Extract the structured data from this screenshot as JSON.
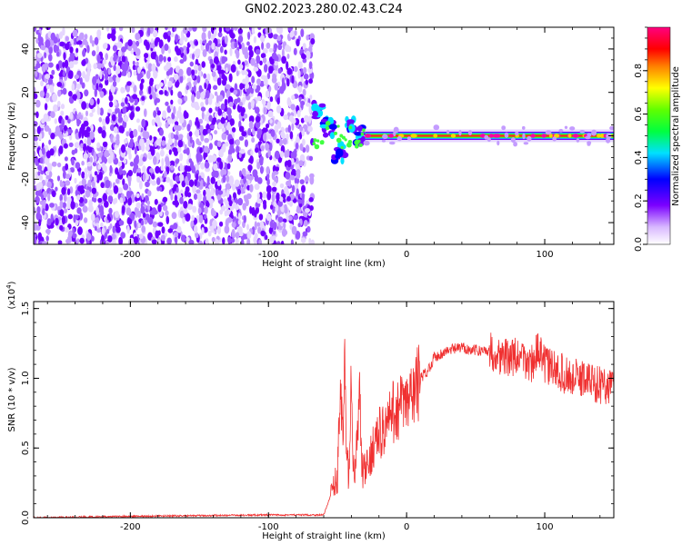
{
  "figure": {
    "title": "GN02.2023.280.02.43.C24"
  },
  "chart_data": [
    {
      "type": "heatmap",
      "name": "spectrogram",
      "xlabel": "Height of straight line (km)",
      "ylabel": "Frequency (Hz)",
      "xlim": [
        -270,
        150
      ],
      "ylim": [
        -50,
        50
      ],
      "x_ticks": [
        -200,
        -100,
        0,
        100
      ],
      "y_ticks": [
        -40,
        -20,
        0,
        20,
        40
      ],
      "colorbar": {
        "label": "Normalized spectral amplitude",
        "range": [
          0,
          1
        ],
        "ticks": [
          "0.0",
          "0.2",
          "0.4",
          "0.6",
          "0.8"
        ],
        "colormap": "white-violet-blue-cyan-green-yellow-red-magenta"
      },
      "regions": [
        {
          "x": [
            -270,
            -68
          ],
          "description_value": "broadband noise",
          "amplitude_range": [
            0.0,
            0.25
          ],
          "freq_range": [
            -50,
            50
          ]
        },
        {
          "x": [
            -68,
            -30
          ],
          "freq_center_approx": [
            12,
            0,
            -8,
            4,
            0
          ],
          "amplitude_range": [
            0.2,
            0.5
          ]
        },
        {
          "x": [
            -30,
            150
          ],
          "freq_center": 0,
          "amplitude_center": 0.9,
          "amplitude_edge": 0.3
        }
      ]
    },
    {
      "type": "line",
      "name": "snr",
      "xlabel": "Height of straight line (km)",
      "ylabel": "SNR (10 * v/v)",
      "y_scale_label": "(x10",
      "y_scale_exp": "4",
      "y_scale_close": ")",
      "xlim": [
        -270,
        150
      ],
      "ylim": [
        0,
        1.55
      ],
      "x_ticks": [
        -200,
        -100,
        0,
        100
      ],
      "y_ticks": [
        "0.0",
        "0.5",
        "1.0",
        "1.5"
      ],
      "series": [
        {
          "color": "#f03030",
          "x": [
            -270,
            -200,
            -100,
            -60,
            -50,
            -48,
            -46,
            -45,
            -44,
            -42,
            -40,
            -38,
            -36,
            -34,
            -32,
            -30,
            -28,
            -25,
            -20,
            -15,
            -10,
            -5,
            0,
            5,
            10,
            15,
            20,
            30,
            40,
            50,
            60,
            70,
            80,
            90,
            95,
            100,
            110,
            120,
            130,
            140,
            150
          ],
          "values": [
            0.0,
            0.01,
            0.02,
            0.02,
            0.3,
            1.0,
            0.5,
            1.15,
            0.6,
            0.3,
            0.95,
            0.25,
            0.5,
            0.85,
            0.3,
            0.35,
            0.35,
            0.5,
            0.6,
            0.65,
            0.75,
            0.8,
            0.8,
            0.9,
            1.0,
            1.05,
            1.15,
            1.2,
            1.22,
            1.2,
            1.2,
            1.15,
            1.15,
            1.1,
            1.2,
            1.1,
            1.05,
            1.0,
            1.0,
            0.95,
            0.95
          ]
        }
      ]
    }
  ]
}
